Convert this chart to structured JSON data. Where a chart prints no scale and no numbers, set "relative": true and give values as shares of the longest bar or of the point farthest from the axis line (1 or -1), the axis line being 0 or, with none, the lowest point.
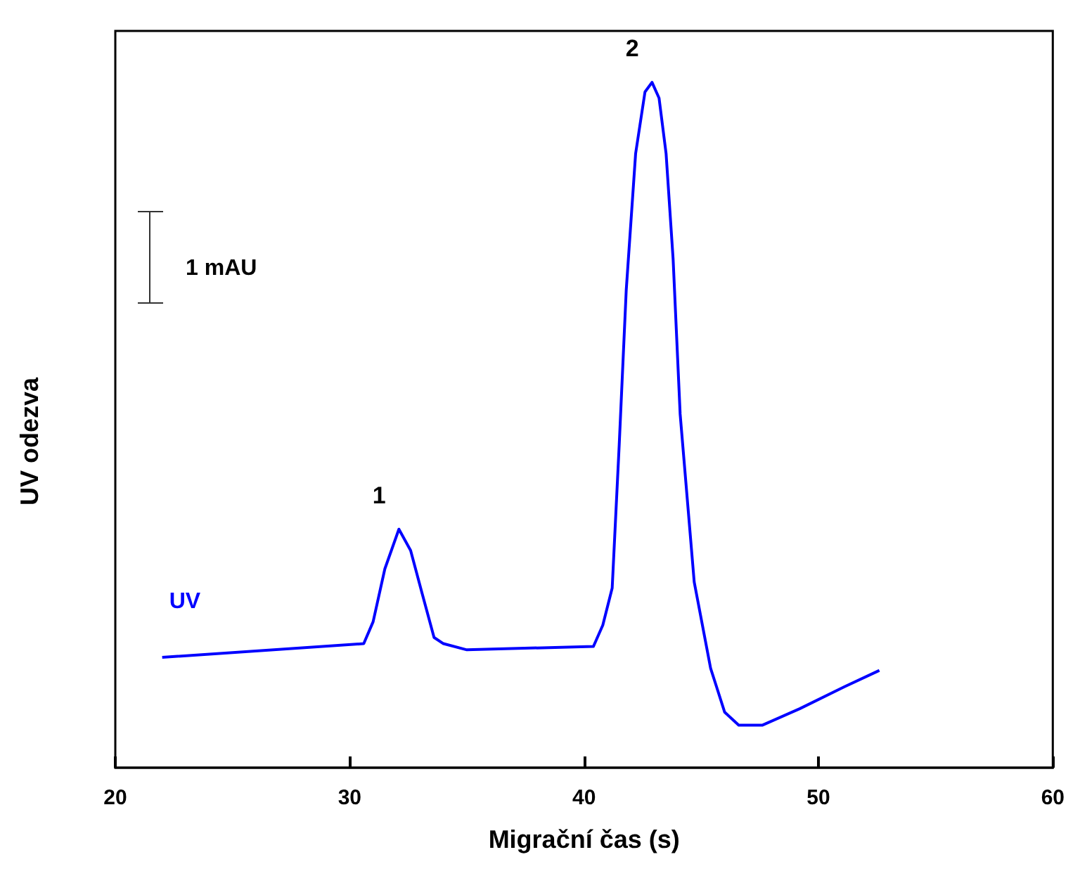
{
  "chart_data": {
    "type": "line",
    "relative": true,
    "xlabel": "Migrační čas (s)",
    "ylabel": "UV odezva",
    "xlim": [
      20,
      60
    ],
    "xticks": [
      20,
      30,
      40,
      50,
      60
    ],
    "grid": false,
    "legend": false,
    "marker": "none",
    "line_style": "solid",
    "annotations": [
      {
        "text": "1",
        "x": 32.1,
        "y": 0.348
      },
      {
        "text": "2",
        "x": 42.9,
        "y": 1.0
      },
      "1 mAU"
    ],
    "series": [
      {
        "name": "UV",
        "color": "#0000ff",
        "x": [
          22.0,
          30.6,
          31.0,
          31.5,
          32.1,
          32.6,
          33.1,
          33.6,
          34.0,
          35.0,
          40.4,
          40.8,
          41.2,
          41.5,
          41.8,
          42.2,
          42.6,
          42.9,
          43.2,
          43.5,
          43.8,
          44.1,
          44.7,
          45.4,
          46.0,
          46.6,
          47.6,
          49.2,
          51.1,
          52.6
        ],
        "values": [
          0.161,
          0.181,
          0.213,
          0.29,
          0.348,
          0.317,
          0.253,
          0.19,
          0.181,
          0.172,
          0.177,
          0.208,
          0.262,
          0.471,
          0.697,
          0.896,
          0.986,
          1.0,
          0.977,
          0.896,
          0.742,
          0.516,
          0.271,
          0.145,
          0.081,
          0.062,
          0.062,
          0.086,
          0.118,
          0.142
        ]
      }
    ]
  }
}
